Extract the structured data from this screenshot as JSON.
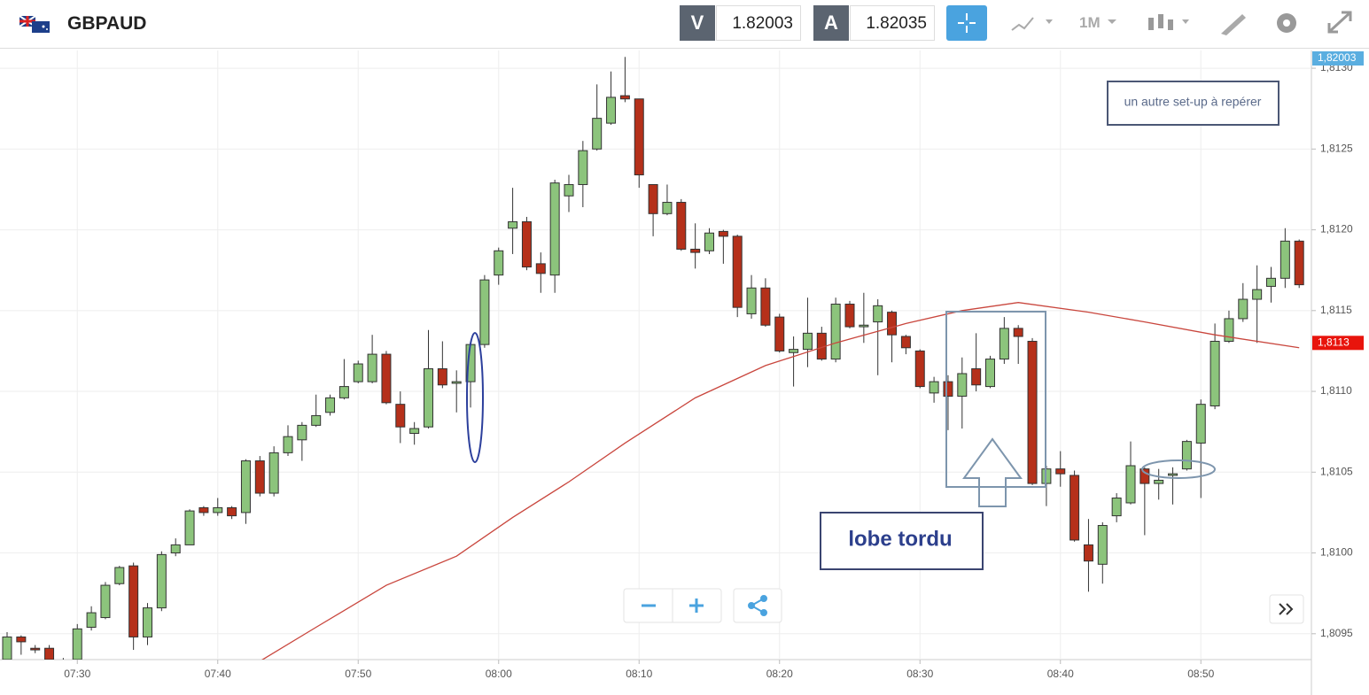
{
  "header": {
    "symbol": "GBPAUD",
    "bid_label": "V",
    "bid": "1.82003",
    "ask_label": "A",
    "ask": "1.82035",
    "timeframe": "1M"
  },
  "chart_data": {
    "type": "candlestick",
    "categories": [
      "07:25",
      "07:26",
      "07:27",
      "07:28",
      "07:29",
      "07:30",
      "07:31",
      "07:32",
      "07:33",
      "07:34",
      "07:35",
      "07:36",
      "07:37",
      "07:38",
      "07:39",
      "07:40",
      "07:41",
      "07:42",
      "07:43",
      "07:44",
      "07:45",
      "07:46",
      "07:47",
      "07:48",
      "07:49",
      "07:50",
      "07:51",
      "07:52",
      "07:53",
      "07:54",
      "07:55",
      "07:56",
      "07:57",
      "07:58",
      "07:59",
      "08:00",
      "08:01",
      "08:02",
      "08:03",
      "08:04",
      "08:05",
      "08:06",
      "08:07",
      "08:08",
      "08:09",
      "08:10",
      "08:11",
      "08:12",
      "08:13",
      "08:14",
      "08:15",
      "08:16",
      "08:17",
      "08:18",
      "08:19",
      "08:20",
      "08:21",
      "08:22",
      "08:23",
      "08:24",
      "08:25",
      "08:26",
      "08:27",
      "08:28",
      "08:29",
      "08:30",
      "08:31",
      "08:32",
      "08:33",
      "08:34",
      "08:35",
      "08:36",
      "08:37",
      "08:38",
      "08:39",
      "08:40",
      "08:41",
      "08:42",
      "08:43",
      "08:44",
      "08:45",
      "08:46",
      "08:47",
      "08:48",
      "08:49",
      "08:50",
      "08:51",
      "08:52",
      "08:53",
      "08:54",
      "08:55",
      "08:56",
      "08:57"
    ],
    "open": [
      1.80934,
      1.80948,
      1.80941,
      1.80941,
      1.8093,
      1.80934,
      1.80954,
      1.8096,
      1.80981,
      1.80992,
      1.80948,
      1.80966,
      1.81,
      1.81005,
      1.81028,
      1.81025,
      1.81028,
      1.81025,
      1.81057,
      1.81037,
      1.81062,
      1.8107,
      1.81079,
      1.81087,
      1.81096,
      1.81106,
      1.81106,
      1.81123,
      1.81092,
      1.81074,
      1.81078,
      1.81114,
      1.81105,
      1.81106,
      1.81129,
      1.81172,
      1.81201,
      1.81205,
      1.81179,
      1.81172,
      1.81221,
      1.81228,
      1.8125,
      1.81266,
      1.81283,
      1.81281,
      1.81228,
      1.8121,
      1.81217,
      1.81188,
      1.81187,
      1.81199,
      1.81196,
      1.81148,
      1.81164,
      1.81146,
      1.81124,
      1.81126,
      1.81136,
      1.8112,
      1.81154,
      1.8114,
      1.81143,
      1.81149,
      1.81134,
      1.81125,
      1.81099,
      1.81106,
      1.81097,
      1.81114,
      1.81103,
      1.8112,
      1.81139,
      1.81131,
      1.81043,
      1.81052,
      1.81048,
      1.81005,
      1.80993,
      1.81023,
      1.81031,
      1.81052,
      1.81043,
      1.81048,
      1.81052,
      1.81068,
      1.81091,
      1.81131,
      1.81145,
      1.81157,
      1.81165,
      1.8117,
      1.81193
    ],
    "high": [
      1.80951,
      1.80949,
      1.80943,
      1.80943,
      1.80935,
      1.80956,
      1.80967,
      1.80982,
      1.80992,
      1.80994,
      1.80969,
      1.81001,
      1.81009,
      1.81027,
      1.81029,
      1.81034,
      1.81029,
      1.81058,
      1.8106,
      1.81066,
      1.81079,
      1.81081,
      1.81098,
      1.81098,
      1.8112,
      1.81119,
      1.81135,
      1.81125,
      1.811,
      1.81081,
      1.81138,
      1.81131,
      1.81113,
      1.81131,
      1.81172,
      1.81189,
      1.81226,
      1.81208,
      1.81186,
      1.81231,
      1.81234,
      1.81255,
      1.8129,
      1.81298,
      1.81307,
      1.81281,
      1.81228,
      1.81228,
      1.81219,
      1.81204,
      1.81201,
      1.812,
      1.81197,
      1.81172,
      1.8117,
      1.81148,
      1.81134,
      1.81158,
      1.8114,
      1.81158,
      1.81156,
      1.81161,
      1.81157,
      1.8115,
      1.81135,
      1.81126,
      1.81109,
      1.8111,
      1.81121,
      1.81136,
      1.81122,
      1.81146,
      1.81141,
      1.81133,
      1.81054,
      1.81063,
      1.81051,
      1.81021,
      1.81019,
      1.81037,
      1.81069,
      1.81053,
      1.81052,
      1.81053,
      1.8107,
      1.81095,
      1.81142,
      1.8115,
      1.81167,
      1.81178,
      1.81177,
      1.81201,
      1.81194
    ],
    "low": [
      1.80933,
      1.80937,
      1.80938,
      1.80931,
      1.80925,
      1.80931,
      1.80952,
      1.80959,
      1.8098,
      1.8094,
      1.80943,
      1.80964,
      1.80998,
      1.81005,
      1.81023,
      1.81023,
      1.81021,
      1.81018,
      1.81035,
      1.81035,
      1.8106,
      1.81057,
      1.81078,
      1.81085,
      1.81095,
      1.81105,
      1.81105,
      1.81092,
      1.81068,
      1.81067,
      1.81077,
      1.81102,
      1.81087,
      1.8109,
      1.81127,
      1.81166,
      1.81185,
      1.81175,
      1.81161,
      1.81161,
      1.81211,
      1.81214,
      1.81249,
      1.81265,
      1.81279,
      1.81226,
      1.81196,
      1.81209,
      1.81187,
      1.81176,
      1.81185,
      1.81179,
      1.81146,
      1.81145,
      1.8114,
      1.81124,
      1.81103,
      1.81115,
      1.81119,
      1.81118,
      1.81139,
      1.8113,
      1.8111,
      1.81118,
      1.81123,
      1.81102,
      1.81093,
      1.81076,
      1.81077,
      1.811,
      1.81102,
      1.81117,
      1.81117,
      1.81042,
      1.81029,
      1.81041,
      1.81007,
      1.80976,
      1.80981,
      1.81019,
      1.8103,
      1.81011,
      1.81033,
      1.8103,
      1.81051,
      1.81034,
      1.81089,
      1.8113,
      1.81143,
      1.8113,
      1.81155,
      1.81164,
      1.81164
    ],
    "close": [
      1.80948,
      1.80945,
      1.8094,
      1.80934,
      1.80933,
      1.80953,
      1.80963,
      1.8098,
      1.80991,
      1.80948,
      1.80966,
      1.80999,
      1.81005,
      1.81026,
      1.81025,
      1.81028,
      1.81023,
      1.81057,
      1.81037,
      1.81062,
      1.81072,
      1.81079,
      1.81085,
      1.81096,
      1.81103,
      1.81117,
      1.81123,
      1.81093,
      1.81078,
      1.81077,
      1.81114,
      1.81104,
      1.81106,
      1.81129,
      1.81169,
      1.81187,
      1.81205,
      1.81177,
      1.81173,
      1.81229,
      1.81228,
      1.81249,
      1.81269,
      1.81282,
      1.81281,
      1.81234,
      1.8121,
      1.81217,
      1.81188,
      1.81186,
      1.81198,
      1.81196,
      1.81152,
      1.81164,
      1.81141,
      1.81125,
      1.81126,
      1.81136,
      1.8112,
      1.81154,
      1.8114,
      1.81141,
      1.81153,
      1.81135,
      1.81127,
      1.81103,
      1.81106,
      1.81097,
      1.81111,
      1.81104,
      1.8112,
      1.81139,
      1.81134,
      1.81043,
      1.81052,
      1.81049,
      1.81008,
      1.80995,
      1.81017,
      1.81034,
      1.81054,
      1.81043,
      1.81045,
      1.81049,
      1.81069,
      1.81092,
      1.81131,
      1.81145,
      1.81157,
      1.81163,
      1.8117,
      1.81193,
      1.81166
    ],
    "up_color": "#8cc47c",
    "down_color": "#b5301a",
    "moving_average": {
      "color": "#c9463d",
      "x": [
        "07:43",
        "07:47",
        "07:52",
        "07:57",
        "08:01",
        "08:05",
        "08:09",
        "08:14",
        "08:19",
        "08:24",
        "08:29",
        "08:33",
        "08:37",
        "08:42",
        "08:46",
        "08:51",
        "08:57"
      ],
      "values": [
        1.80933,
        1.80954,
        1.8098,
        1.80998,
        1.81022,
        1.81044,
        1.81068,
        1.81096,
        1.81116,
        1.8113,
        1.81142,
        1.8115,
        1.81155,
        1.81149,
        1.81143,
        1.81135,
        1.81127
      ]
    },
    "ylim": [
      1.80934,
      1.81311
    ],
    "yticks": [
      {
        "value": 1.8095,
        "label": "1,8095"
      },
      {
        "value": 1.81,
        "label": "1,8100"
      },
      {
        "value": 1.8105,
        "label": "1,8105"
      },
      {
        "value": 1.811,
        "label": "1,8110"
      },
      {
        "value": 1.8115,
        "label": "1,8115"
      },
      {
        "value": 1.812,
        "label": "1,8120"
      },
      {
        "value": 1.8125,
        "label": "1,8125"
      },
      {
        "value": 1.813,
        "label": "1,8130"
      }
    ],
    "xticks": [
      "07:30",
      "07:40",
      "07:50",
      "08:00",
      "08:10",
      "08:20",
      "08:30",
      "08:40",
      "08:50"
    ],
    "grid": true,
    "price_tags": [
      {
        "value": 1.82003,
        "label": "1,82003",
        "color": "#5aaee0"
      },
      {
        "value": 1.8113,
        "label": "1,8113",
        "color": "#e8140c"
      }
    ],
    "annotations": [
      "un autre set-up à repérer",
      "lobe tordu"
    ]
  }
}
